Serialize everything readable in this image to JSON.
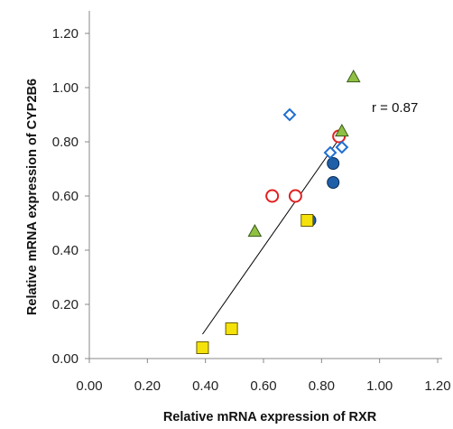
{
  "chart_data": {
    "type": "scatter",
    "xlabel": "Relative mRNA expression of RXR",
    "ylabel": "Relative mRNA expression of CYP2B6",
    "xlim": [
      0,
      1.2
    ],
    "ylim": [
      0,
      1.2
    ],
    "x_ticks": [
      "0.00",
      "0.20",
      "0.40",
      "0.60",
      "0.80",
      "1.00",
      "1.20"
    ],
    "y_ticks": [
      "0.00",
      "0.20",
      "0.40",
      "0.60",
      "0.80",
      "1.00",
      "1.20"
    ],
    "grid": false,
    "annotation": "r = 0.87",
    "trendline": {
      "x": [
        0.39,
        0.86
      ],
      "y": [
        0.09,
        0.81
      ]
    },
    "series": [
      {
        "marker": "circle-filled",
        "color": "#1f5fa8",
        "points": [
          [
            0.76,
            0.51
          ],
          [
            0.84,
            0.72
          ],
          [
            0.84,
            0.65
          ]
        ]
      },
      {
        "marker": "circle-open",
        "color": "#e02020",
        "points": [
          [
            0.63,
            0.6
          ],
          [
            0.71,
            0.6
          ],
          [
            0.86,
            0.82
          ]
        ]
      },
      {
        "marker": "diamond-open",
        "color": "#1f6fd0",
        "points": [
          [
            0.69,
            0.9
          ],
          [
            0.83,
            0.76
          ],
          [
            0.87,
            0.78
          ]
        ]
      },
      {
        "marker": "triangle-filled",
        "color": "#8fc043",
        "points": [
          [
            0.57,
            0.47
          ],
          [
            0.87,
            0.84
          ],
          [
            0.91,
            1.04
          ]
        ]
      },
      {
        "marker": "square-filled",
        "color": "#f5e20a",
        "points": [
          [
            0.39,
            0.04
          ],
          [
            0.49,
            0.11
          ],
          [
            0.75,
            0.51
          ]
        ]
      }
    ]
  }
}
